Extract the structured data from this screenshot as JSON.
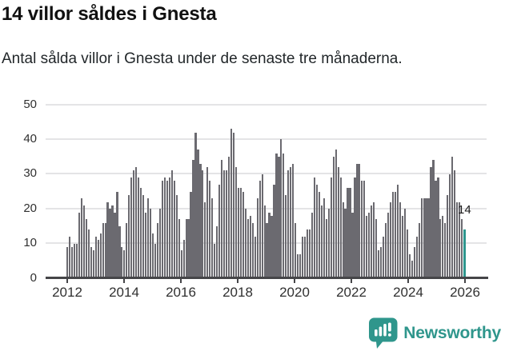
{
  "header": {
    "title": "14 villor såldes i Gnesta",
    "subtitle": "Antal sålda villor i Gnesta under de senaste tre månaderna."
  },
  "chart_data": {
    "type": "bar",
    "title": "14 villor såldes i Gnesta",
    "xlabel": "",
    "ylabel": "",
    "x_start": "2012-01",
    "x_frequency": "monthly",
    "values": [
      9,
      12,
      9,
      10,
      10,
      19,
      23,
      21,
      17,
      14,
      9,
      8,
      12,
      11,
      13,
      16,
      16,
      22,
      20,
      21,
      19,
      25,
      15,
      9,
      8,
      16,
      24,
      29,
      31,
      32,
      29,
      26,
      24,
      19,
      23,
      20,
      13,
      10,
      16,
      20,
      28,
      29,
      28,
      29,
      31,
      28,
      24,
      17,
      8,
      11,
      17,
      17,
      25,
      34,
      42,
      37,
      33,
      31,
      22,
      32,
      28,
      23,
      10,
      15,
      27,
      34,
      31,
      31,
      35,
      43,
      42,
      32,
      26,
      26,
      25,
      20,
      17,
      18,
      16,
      12,
      23,
      28,
      30,
      21,
      16,
      19,
      18,
      27,
      36,
      35,
      40,
      36,
      24,
      31,
      32,
      33,
      16,
      7,
      7,
      12,
      12,
      14,
      14,
      19,
      29,
      27,
      25,
      21,
      23,
      17,
      20,
      29,
      35,
      37,
      32,
      29,
      22,
      20,
      26,
      26,
      19,
      29,
      33,
      33,
      28,
      28,
      18,
      19,
      21,
      22,
      17,
      8,
      9,
      12,
      16,
      19,
      22,
      25,
      25,
      27,
      22,
      18,
      20,
      14,
      7,
      5,
      9,
      12,
      16,
      23,
      23,
      23,
      23,
      32,
      34,
      28,
      29,
      17,
      18,
      16,
      24,
      30,
      35,
      31,
      22,
      22,
      17,
      14
    ],
    "highlight": {
      "index": 167,
      "value": 14,
      "label": "14",
      "color": "#2e968e"
    },
    "bar_color": "#6b6a70",
    "ylim": [
      0,
      50
    ],
    "yticks": [
      0,
      10,
      20,
      30,
      40,
      50
    ],
    "xticks": [
      "2012",
      "2014",
      "2016",
      "2018",
      "2020",
      "2022",
      "2024",
      "2026"
    ],
    "grid": "horizontal",
    "legend": "none"
  },
  "footer": {
    "brand_name": "Newsworthy",
    "brand_color": "#2f968c"
  }
}
